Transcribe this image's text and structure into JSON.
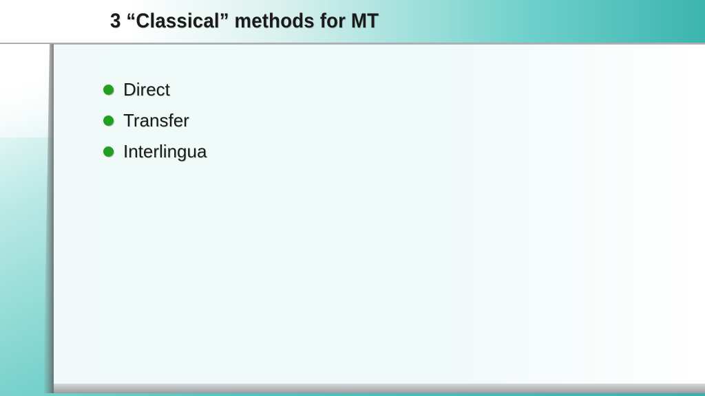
{
  "title": "3 “Classical” methods for MT",
  "bullets": [
    {
      "label": "Direct"
    },
    {
      "label": "Transfer"
    },
    {
      "label": "Interlingua"
    }
  ],
  "style": {
    "slide_width": 1024,
    "slide_height": 576,
    "title_fontsize": 30,
    "bullet_fontsize": 26,
    "bullet_color": "#1fa01f",
    "text_color": "#1a1a1a",
    "title_bar_gradient": [
      "#ffffff",
      "#d9f1ee",
      "#6fd0cb",
      "#3cb4af"
    ],
    "background_gradient": [
      "#ffffff",
      "#b8e8e4",
      "#52c4bf",
      "#3bb0ab"
    ],
    "content_background": [
      "#f1faf9",
      "#ffffff"
    ],
    "bottom_bar_gradient": [
      "#d6d7d8",
      "#9a9c9e"
    ],
    "bullet_dot_size": 15,
    "bullet_spacing": 14
  }
}
